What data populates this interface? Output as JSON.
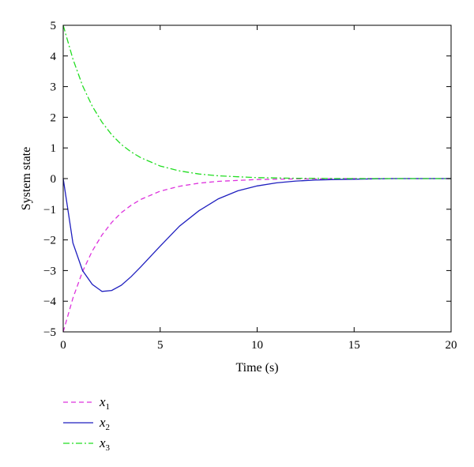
{
  "chart_data": {
    "type": "line",
    "title": "",
    "xlabel": "Time (s)",
    "ylabel": "System state",
    "xlim": [
      0,
      20
    ],
    "ylim": [
      -5,
      5
    ],
    "xticks": [
      0,
      5,
      10,
      15,
      20
    ],
    "yticks": [
      -5,
      -4,
      -3,
      -2,
      -1,
      0,
      1,
      2,
      3,
      4,
      5
    ],
    "xtick_labels": [
      "0",
      "5",
      "10",
      "15",
      "20"
    ],
    "ytick_labels": [
      "−5",
      "−4",
      "−3",
      "−2",
      "−1",
      "0",
      "1",
      "2",
      "3",
      "4",
      "5"
    ],
    "grid": false,
    "legend_position": "bottom-left, below plot",
    "x": [
      0,
      0.5,
      1,
      1.5,
      2,
      2.5,
      3,
      3.5,
      4,
      5,
      6,
      7,
      8,
      9,
      10,
      11,
      12,
      13,
      14,
      15,
      16,
      17,
      18,
      19,
      20
    ],
    "series": [
      {
        "name": "x1",
        "legend_base": "x",
        "legend_sub": "1",
        "color": "#dd33dd",
        "dash": "dashed",
        "values": [
          -5,
          -3.9,
          -3.03,
          -2.36,
          -1.84,
          -1.43,
          -1.11,
          -0.87,
          -0.68,
          -0.41,
          -0.25,
          -0.15,
          -0.09,
          -0.06,
          -0.03,
          -0.02,
          -0.01,
          -0.01,
          0,
          0,
          0,
          0,
          0,
          0,
          0
        ]
      },
      {
        "name": "x2",
        "legend_base": "x",
        "legend_sub": "2",
        "color": "#1f1fbf",
        "dash": "solid",
        "values": [
          0,
          -2.1,
          -3.0,
          -3.45,
          -3.68,
          -3.65,
          -3.48,
          -3.2,
          -2.88,
          -2.2,
          -1.55,
          -1.05,
          -0.66,
          -0.4,
          -0.24,
          -0.14,
          -0.08,
          -0.05,
          -0.03,
          -0.02,
          -0.01,
          0,
          0,
          0,
          0
        ]
      },
      {
        "name": "x3",
        "legend_base": "x",
        "legend_sub": "3",
        "color": "#22dd22",
        "dash": "dashdot",
        "values": [
          5,
          3.9,
          3.03,
          2.36,
          1.84,
          1.43,
          1.11,
          0.87,
          0.68,
          0.41,
          0.25,
          0.15,
          0.09,
          0.06,
          0.03,
          0.02,
          0.01,
          0.01,
          0,
          0,
          0,
          0,
          0,
          0,
          0
        ]
      }
    ]
  }
}
